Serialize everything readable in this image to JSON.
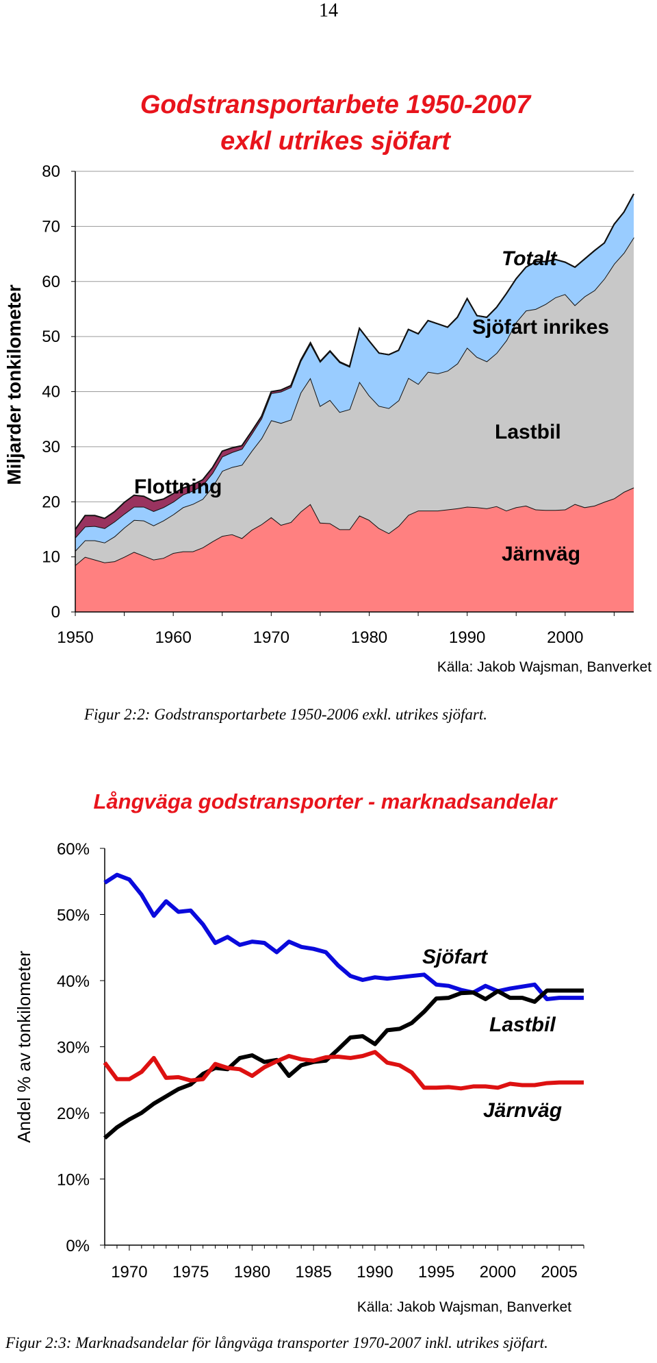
{
  "page": {
    "number": "14"
  },
  "figure1": {
    "caption": "Figur 2:2: Godstransportarbete 1950-2006 exkl. utrikes sjöfart."
  },
  "figure2": {
    "caption": "Figur 2:3: Marknadsandelar för långväga transporter 1970-2007 inkl. utrikes sjöfart."
  },
  "chart_data": [
    {
      "type": "area",
      "stacked": true,
      "title": "Godstransportarbete 1950-2007 exkl utrikes sjöfart",
      "title_lines": [
        "Godstransportarbete 1950-2007",
        "exkl utrikes sjöfart"
      ],
      "ylabel": "Miljarder tonkilometer",
      "xlabel": "",
      "source": "Källa: Jakob Wajsman, Banverket",
      "xlim": [
        1950,
        2007
      ],
      "ylim": [
        0,
        80
      ],
      "yticks": [
        "0",
        "10",
        "20",
        "30",
        "40",
        "50",
        "60",
        "70",
        "80"
      ],
      "xticks": [
        "1950",
        "1960",
        "1970",
        "1980",
        "1990",
        "2000"
      ],
      "grid": true,
      "x": [
        1950,
        1951,
        1952,
        1953,
        1954,
        1955,
        1956,
        1957,
        1958,
        1959,
        1960,
        1961,
        1962,
        1963,
        1964,
        1965,
        1966,
        1967,
        1968,
        1969,
        1970,
        1971,
        1972,
        1973,
        1974,
        1975,
        1976,
        1977,
        1978,
        1979,
        1980,
        1981,
        1982,
        1983,
        1984,
        1985,
        1986,
        1987,
        1988,
        1989,
        1990,
        1991,
        1992,
        1993,
        1994,
        1995,
        1996,
        1997,
        1998,
        1999,
        2000,
        2001,
        2002,
        2003,
        2004,
        2005,
        2006,
        2007
      ],
      "series": [
        {
          "name": "Järnväg",
          "color": "#ff8080",
          "values": [
            8.5,
            10,
            9.5,
            9,
            9.2,
            10,
            10.9,
            10.2,
            9.5,
            9.8,
            10.7,
            11,
            11,
            11.7,
            12.8,
            13.8,
            14.1,
            13.4,
            14.9,
            15.9,
            17.2,
            15.8,
            16.3,
            18.2,
            19.6,
            16.2,
            16.1,
            15,
            15,
            17.5,
            16.7,
            15.2,
            14.3,
            15.6,
            17.6,
            18.4,
            18.4,
            18.4,
            18.6,
            18.8,
            19.1,
            19,
            18.8,
            19.2,
            18.4,
            19,
            19.3,
            18.6,
            18.5,
            18.5,
            18.6,
            19.6,
            19,
            19.3,
            20,
            20.6,
            21.8,
            22.6
          ]
        },
        {
          "name": "Lastbil",
          "color": "#c8c8c8",
          "values": [
            2.6,
            3,
            3.5,
            3.6,
            4.5,
            5.3,
            5.8,
            6.4,
            6.2,
            6.8,
            7,
            8,
            8.6,
            8.8,
            9.9,
            11.8,
            12.2,
            13.3,
            14.3,
            15.6,
            17.6,
            18.5,
            18.6,
            21.6,
            22.9,
            21.2,
            22.4,
            21.3,
            21.8,
            24.3,
            22.6,
            22.2,
            22.7,
            22.8,
            24.9,
            23,
            25.2,
            24.9,
            25.2,
            26.3,
            28.9,
            27.3,
            26.7,
            27.8,
            30.9,
            33.6,
            35.4,
            36.4,
            37.4,
            38.6,
            39.1,
            36.1,
            38.3,
            39.1,
            40.5,
            42.6,
            43.4,
            45.4
          ]
        },
        {
          "name": "Sjöfart inrikes",
          "color": "#99ccff",
          "values": [
            2.4,
            2.5,
            2.6,
            2.6,
            2.7,
            2.5,
            2.4,
            2.5,
            2.6,
            2.4,
            2.3,
            2.3,
            2.4,
            2.5,
            2.5,
            2.6,
            2.7,
            2.9,
            3.1,
            3.6,
            4.9,
            5.7,
            5.9,
            5.7,
            6.2,
            8,
            8.8,
            9,
            7.7,
            9.7,
            9.9,
            9.6,
            9.7,
            9.1,
            8.8,
            9.1,
            9.3,
            9,
            7.9,
            8.4,
            8.9,
            7.5,
            8,
            8.3,
            8.5,
            7.9,
            7.9,
            8.6,
            7.7,
            6.9,
            5.8,
            6.9,
            6.8,
            7.2,
            6.5,
            7.2,
            7.4,
            7.9
          ]
        },
        {
          "name": "Flottning",
          "color": "#99335f",
          "values": [
            1.5,
            2,
            1.9,
            1.8,
            1.8,
            2.1,
            2.1,
            1.9,
            1.8,
            1.5,
            1.5,
            1.2,
            1.1,
            1,
            1,
            1,
            0.8,
            0.6,
            0.5,
            0.4,
            0.3,
            0.3,
            0.3,
            0.2,
            0.2,
            0.1,
            0.1,
            0.1,
            0.1,
            0,
            0,
            0,
            0,
            0,
            0,
            0,
            0,
            0,
            0,
            0,
            0,
            0,
            0,
            0,
            0,
            0,
            0,
            0,
            0,
            0,
            0,
            0,
            0,
            0,
            0,
            0,
            0,
            0
          ]
        }
      ],
      "annotations": [
        "Totalt",
        "Sjöfart inrikes",
        "Lastbil",
        "Flottning",
        "Järnväg"
      ]
    },
    {
      "type": "line",
      "title": "Långväga godstransporter - marknadsandelar",
      "ylabel": "Andel % av tonkilometer",
      "xlabel": "",
      "source": "Källa: Jakob Wajsman, Banverket",
      "xlim": [
        1968,
        2007
      ],
      "ylim": [
        0,
        60
      ],
      "yticks": [
        "0%",
        "10%",
        "20%",
        "30%",
        "40%",
        "50%",
        "60%"
      ],
      "xticks": [
        "1970",
        "1975",
        "1980",
        "1985",
        "1990",
        "1995",
        "2000",
        "2005"
      ],
      "grid": false,
      "x": [
        1968,
        1969,
        1970,
        1971,
        1972,
        1973,
        1974,
        1975,
        1976,
        1977,
        1978,
        1979,
        1980,
        1981,
        1982,
        1983,
        1984,
        1985,
        1986,
        1987,
        1988,
        1989,
        1990,
        1991,
        1992,
        1993,
        1994,
        1995,
        1996,
        1997,
        1998,
        1999,
        2000,
        2001,
        2002,
        2003,
        2004,
        2005,
        2006,
        2007
      ],
      "series": [
        {
          "name": "Sjöfart",
          "color": "#0a0adc",
          "values": [
            54.8,
            56,
            55.3,
            53,
            49.8,
            52,
            50.4,
            50.6,
            48.5,
            45.7,
            46.6,
            45.4,
            45.9,
            45.7,
            44.3,
            45.9,
            45.1,
            44.8,
            44.3,
            42.3,
            40.7,
            40.1,
            40.5,
            40.3,
            40.5,
            40.7,
            40.9,
            39.4,
            39.2,
            38.6,
            38.2,
            39.2,
            38.4,
            38.8,
            39.1,
            39.4,
            37.2,
            37.4,
            37.4,
            37.4
          ]
        },
        {
          "name": "Lastbil",
          "color": "#000000",
          "values": [
            16.2,
            17.8,
            19,
            20,
            21.4,
            22.5,
            23.6,
            24.3,
            25.9,
            26.8,
            26.6,
            28.3,
            28.7,
            27.7,
            28,
            25.6,
            27.2,
            27.7,
            27.9,
            29.6,
            31.4,
            31.6,
            30.4,
            32.5,
            32.7,
            33.6,
            35.3,
            37.3,
            37.4,
            38.1,
            38.2,
            37.2,
            38.4,
            37.4,
            37.4,
            36.8,
            38.5,
            38.5,
            38.5,
            38.5
          ]
        },
        {
          "name": "Järnväg",
          "color": "#dd1111",
          "values": [
            27.6,
            25.1,
            25.1,
            26.2,
            28.3,
            25.3,
            25.4,
            24.9,
            25.1,
            27.4,
            26.8,
            26.6,
            25.6,
            26.9,
            27.8,
            28.6,
            28.1,
            27.9,
            28.4,
            28.5,
            28.3,
            28.6,
            29.2,
            27.6,
            27.2,
            26.1,
            23.8,
            23.8,
            23.9,
            23.7,
            24,
            24,
            23.8,
            24.4,
            24.2,
            24.2,
            24.5,
            24.6,
            24.6,
            24.6
          ]
        }
      ],
      "annotations": [
        "Sjöfart",
        "Lastbil",
        "Järnväg"
      ]
    }
  ]
}
